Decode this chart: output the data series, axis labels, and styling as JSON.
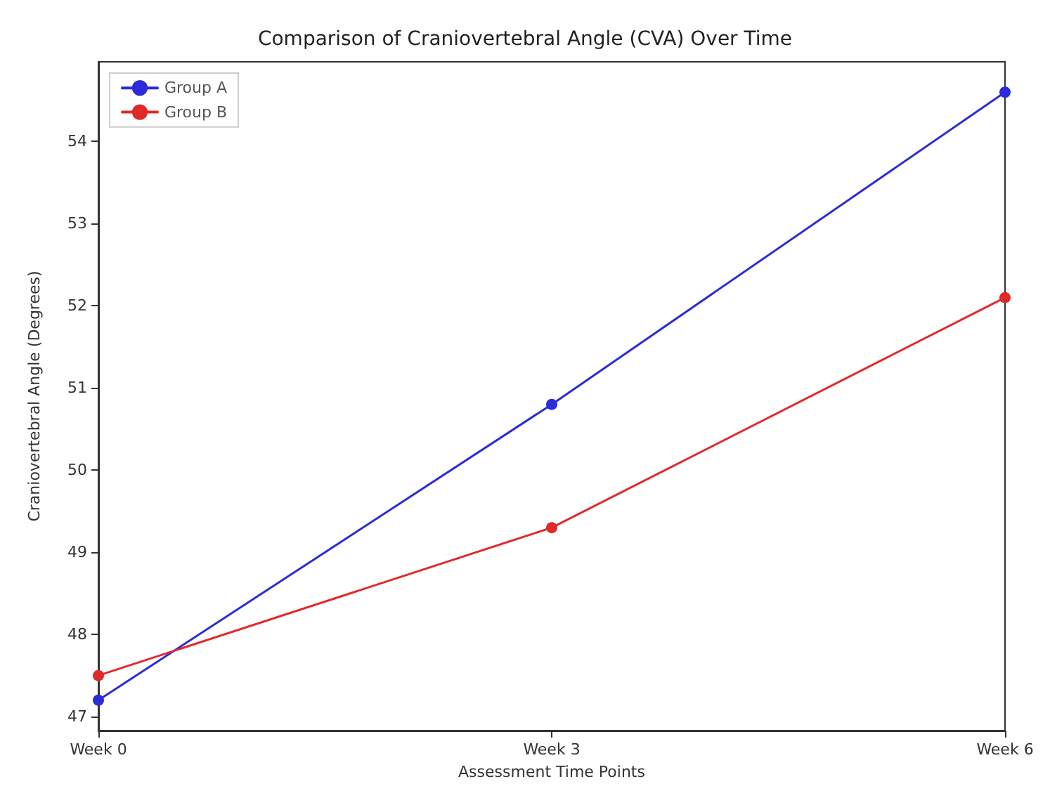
{
  "chart_data": {
    "type": "line",
    "title": "Comparison of Craniovertebral Angle (CVA) Over Time",
    "xlabel": "Assessment Time Points",
    "ylabel": "Craniovertebral Angle (Degrees)",
    "categories": [
      "Week 0",
      "Week 3",
      "Week 6"
    ],
    "series": [
      {
        "name": "Group A",
        "color": "#2b2bd9",
        "values": [
          47.2,
          50.8,
          54.6
        ]
      },
      {
        "name": "Group B",
        "color": "#e02a2a",
        "values": [
          47.5,
          49.3,
          52.1
        ]
      }
    ],
    "ylim": [
      46.83,
      54.97
    ],
    "yticks": [
      47,
      48,
      49,
      50,
      51,
      52,
      53,
      54
    ],
    "grid": false,
    "legend": "top left",
    "marker": "circle",
    "line_style": "solid"
  }
}
